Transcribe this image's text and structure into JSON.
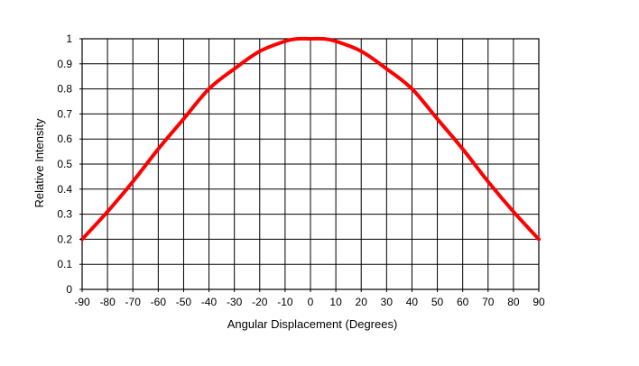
{
  "chart_data": {
    "type": "line",
    "title": "",
    "xlabel": "Angular Displacement (Degrees)",
    "ylabel": "Relative Intensity",
    "xlim": [
      -90,
      90
    ],
    "ylim": [
      0,
      1
    ],
    "x_ticks": [
      -90,
      -80,
      -70,
      -60,
      -50,
      -40,
      -30,
      -20,
      -10,
      0,
      10,
      20,
      30,
      40,
      50,
      60,
      70,
      80,
      90
    ],
    "y_ticks": [
      0,
      0.1,
      0.2,
      0.3,
      0.4,
      0.5,
      0.6,
      0.7,
      0.8,
      0.9,
      1
    ],
    "x_tick_labels": [
      "-90",
      "-80",
      "-70",
      "-60",
      "-50",
      "-40",
      "-30",
      "-20",
      "-10",
      "0",
      "10",
      "20",
      "30",
      "40",
      "50",
      "60",
      "70",
      "80",
      "90"
    ],
    "y_tick_labels": [
      "0",
      "0.1",
      "0.2",
      "0.3",
      "0.4",
      "0.5",
      "0.6",
      "0.7",
      "0.8",
      "0.9",
      "1"
    ],
    "grid": true,
    "legend": "none",
    "series": [
      {
        "color": "#ff0000",
        "x": [
          -90,
          -80,
          -70,
          -60,
          -50,
          -40,
          -30,
          -20,
          -10,
          -5,
          0,
          5,
          10,
          20,
          30,
          40,
          50,
          60,
          70,
          80,
          90
        ],
        "y": [
          0.2,
          0.31,
          0.43,
          0.56,
          0.68,
          0.8,
          0.88,
          0.95,
          0.99,
          1.0,
          1.0,
          1.0,
          0.99,
          0.95,
          0.88,
          0.8,
          0.68,
          0.56,
          0.43,
          0.31,
          0.2
        ]
      }
    ]
  }
}
